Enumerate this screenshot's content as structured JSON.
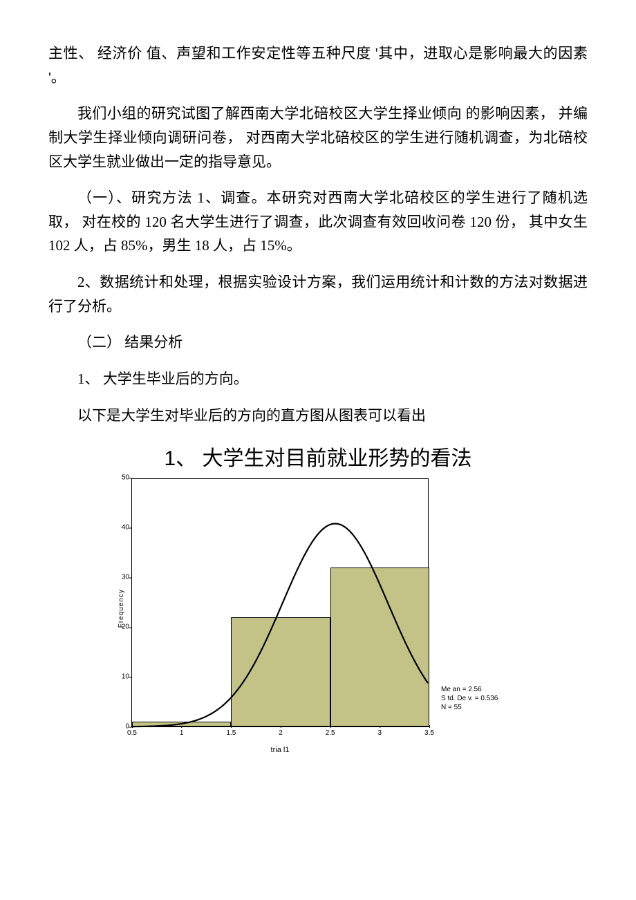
{
  "paragraphs": {
    "p1": "主性、 经济价 值、声望和工作安定性等五种尺度 '其中，进取心是影响最大的因素 '。",
    "p2": "我们小组的研究试图了解西南大学北碚校区大学生择业倾向 的影响因素， 并编制大学生择业倾向调研问卷， 对西南大学北碚校区的学生进行随机调查，为北碚校区大学生就业做出一定的指导意见。",
    "p3": "（一）、研究方法 1、调查。本研究对西南大学北碚校区的学生进行了随机选取， 对在校的 120 名大学生进行了调查，此次调查有效回收问卷 120 份， 其中女生 102 人，占 85%，男生 18 人，占 15%。",
    "p4": "2、数据统计和处理，根据实验设计方案，我们运用统计和计数的方法对数据进行了分析。",
    "p5": "（二） 结果分析",
    "p6": "1、 大学生毕业后的方向。",
    "p7": "以下是大学生对毕业后的方向的直方图从图表可以看出"
  },
  "chart": {
    "title": "1、    大学生对目前就业形势的看法",
    "type": "histogram",
    "xlabel": "tria l1",
    "ylabel": "Frequency",
    "xlim": [
      0.5,
      3.5
    ],
    "ylim": [
      0,
      50
    ],
    "yticks": [
      0,
      10,
      20,
      30,
      40,
      50
    ],
    "xticks": [
      0.5,
      1,
      1.5,
      2,
      2.5,
      3,
      3.5
    ],
    "bars": [
      {
        "x0": 0.5,
        "x1": 1.5,
        "height": 1
      },
      {
        "x0": 1.5,
        "x1": 2.5,
        "height": 22
      },
      {
        "x0": 2.5,
        "x1": 3.5,
        "height": 32
      }
    ],
    "bar_color": "#c3c387",
    "bar_border": "#000000",
    "curve_color": "#000000",
    "curve_width": 2.2,
    "background_color": "#ffffff",
    "plot_border_color": "#000000",
    "curve": {
      "mean": 2.56,
      "sd": 0.536,
      "n": 55,
      "peak_y": 41
    },
    "stats_lines": [
      "Me an = 2.56",
      "S td. De v. = 0.536",
      "N = 55"
    ],
    "label_fontsize": 10,
    "tick_fontsize": 10
  }
}
